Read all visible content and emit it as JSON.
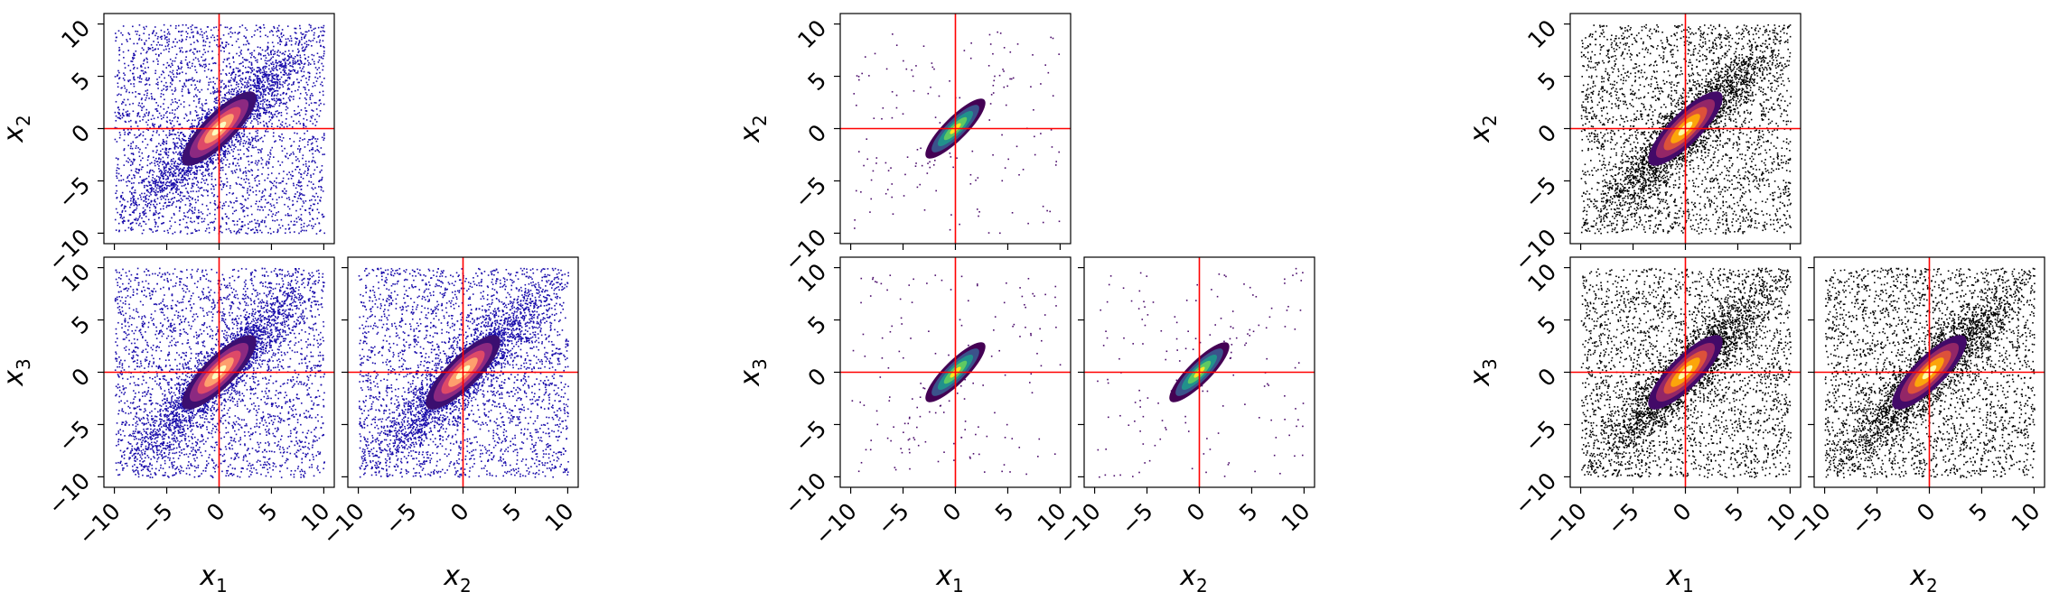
{
  "chart_data": [
    {
      "type": "scatter",
      "style": "blue-points-density-core",
      "colors": {
        "points": "#1a0dab",
        "truth_lines": "#ff0000"
      },
      "panels": [
        {
          "x_label": "x",
          "x_sub": "",
          "y_label": "x",
          "y_sub": "2",
          "show_x_ticks": false,
          "show_y_ticks": true
        },
        {
          "x_label": "x",
          "x_sub": "1",
          "y_label": "x",
          "y_sub": "3",
          "show_x_ticks": true,
          "show_y_ticks": true
        },
        {
          "x_label": "x",
          "x_sub": "2",
          "y_label": "",
          "y_sub": "",
          "show_x_ticks": true,
          "show_y_ticks": false
        }
      ],
      "xlim": [
        -11,
        11
      ],
      "ylim": [
        -11,
        11
      ],
      "truth": {
        "x": 0,
        "y": 0
      },
      "ticks": [
        -10,
        -5,
        0,
        5,
        10
      ],
      "tick_labels": [
        "−10",
        "−5",
        "0",
        "5",
        "10"
      ]
    },
    {
      "type": "scatter",
      "style": "sparse-points-viridis-core",
      "colors": {
        "points": "#4b0c6b",
        "truth_lines": "#ff0000"
      },
      "panels": [
        {
          "x_label": "x",
          "x_sub": "",
          "y_label": "x",
          "y_sub": "2",
          "show_x_ticks": false,
          "show_y_ticks": true
        },
        {
          "x_label": "x",
          "x_sub": "1",
          "y_label": "x",
          "y_sub": "3",
          "show_x_ticks": true,
          "show_y_ticks": true
        },
        {
          "x_label": "x",
          "x_sub": "2",
          "y_label": "",
          "y_sub": "",
          "show_x_ticks": true,
          "show_y_ticks": false
        }
      ],
      "xlim": [
        -11,
        11
      ],
      "ylim": [
        -11,
        11
      ],
      "truth": {
        "x": 0,
        "y": 0
      },
      "ticks": [
        -10,
        -5,
        0,
        5,
        10
      ],
      "tick_labels": [
        "−10",
        "−5",
        "0",
        "5",
        "10"
      ]
    },
    {
      "type": "scatter",
      "style": "black-points-inferno-core",
      "colors": {
        "points": "#000000",
        "truth_lines": "#ff0000"
      },
      "panels": [
        {
          "x_label": "x",
          "x_sub": "",
          "y_label": "x",
          "y_sub": "2",
          "show_x_ticks": false,
          "show_y_ticks": true
        },
        {
          "x_label": "x",
          "x_sub": "1",
          "y_label": "x",
          "y_sub": "3",
          "show_x_ticks": true,
          "show_y_ticks": true
        },
        {
          "x_label": "x",
          "x_sub": "2",
          "y_label": "",
          "y_sub": "",
          "show_x_ticks": true,
          "show_y_ticks": false
        }
      ],
      "xlim": [
        -11,
        11
      ],
      "ylim": [
        -11,
        11
      ],
      "truth": {
        "x": 0,
        "y": 0
      },
      "ticks": [
        -10,
        -5,
        0,
        5,
        10
      ],
      "tick_labels": [
        "−10",
        "−5",
        "0",
        "5",
        "10"
      ]
    }
  ]
}
